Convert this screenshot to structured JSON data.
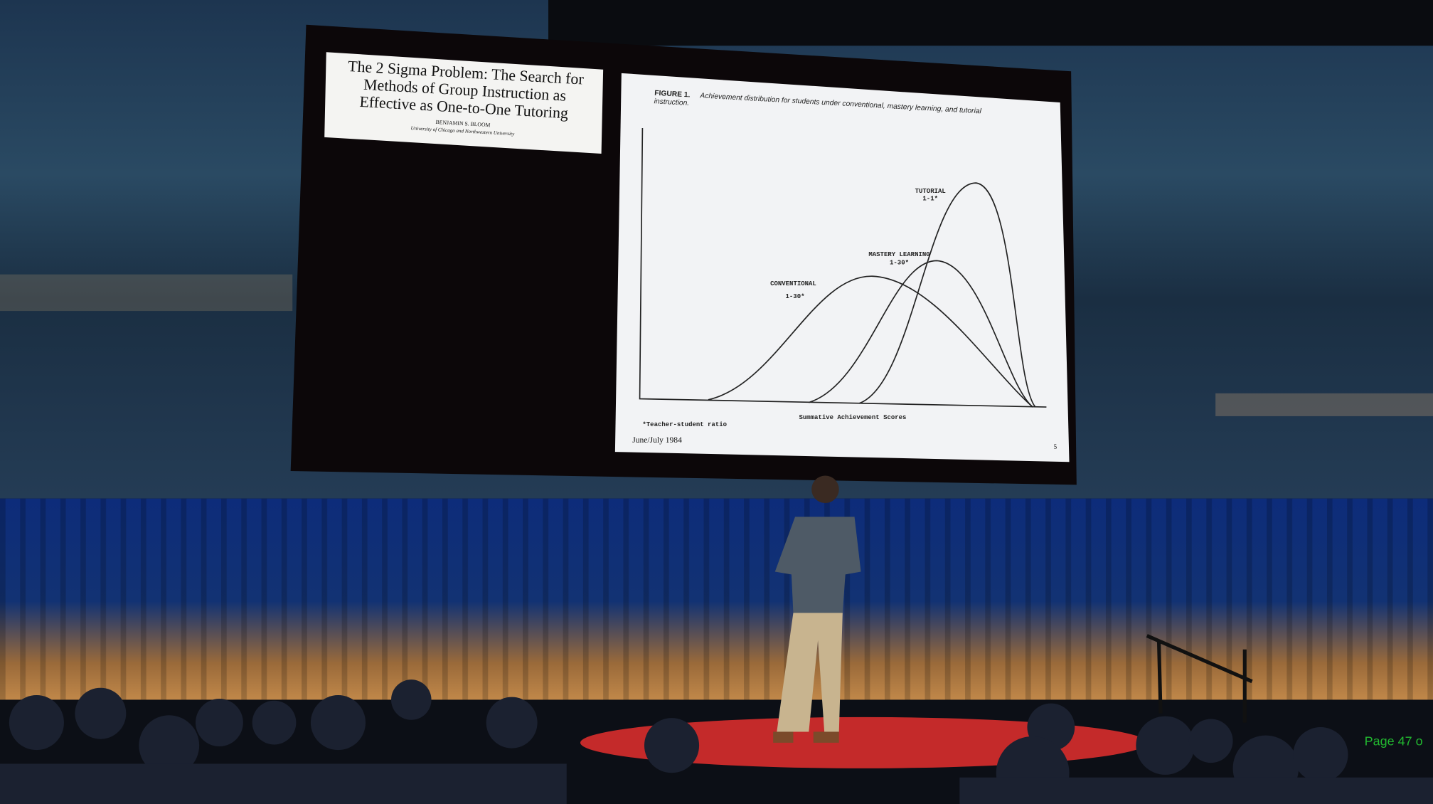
{
  "slide": {
    "paper": {
      "title_lines": [
        "The 2 Sigma Problem: The Search for",
        "Methods of Group Instruction as",
        "Effective as One-to-One Tutoring"
      ],
      "author": "BENJAMIN S. BLOOM",
      "affiliation": "University of Chicago and Northwestern University"
    },
    "figure": {
      "label": "FIGURE 1.",
      "caption_lines": [
        "Achievement distribution for students under conventional, mastery learning, and tutorial",
        "instruction."
      ],
      "curves": [
        {
          "name": "TUTORIAL",
          "ratio": "1-1*"
        },
        {
          "name": "MASTERY LEARNING",
          "ratio": "1-30*"
        },
        {
          "name": "CONVENTIONAL",
          "ratio": "1-30*"
        }
      ],
      "x_axis_label": "Summative Achievement Scores",
      "footnote": "*Teacher-student ratio",
      "issue": "June/July 1984",
      "page": "5"
    }
  },
  "overlay": {
    "page_indicator": "Page 47 o"
  }
}
